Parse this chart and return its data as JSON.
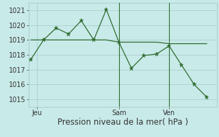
{
  "line1_x": [
    0,
    1,
    2,
    3,
    4,
    5,
    6,
    7,
    8,
    9,
    10,
    11,
    12,
    13,
    14
  ],
  "line1_y": [
    1017.7,
    1019.0,
    1019.8,
    1019.4,
    1020.3,
    1019.0,
    1021.05,
    1018.85,
    1017.1,
    1017.95,
    1018.05,
    1018.6,
    1017.3,
    1016.0,
    1015.15
  ],
  "line2_x": [
    0,
    1,
    2,
    3,
    4,
    5,
    6,
    7,
    8,
    9,
    10,
    11,
    12,
    13,
    14
  ],
  "line2_y": [
    1019.0,
    1019.0,
    1019.0,
    1019.0,
    1019.0,
    1019.0,
    1019.0,
    1018.85,
    1018.85,
    1018.85,
    1018.85,
    1018.75,
    1018.75,
    1018.75,
    1018.75
  ],
  "line_color": "#2d6a2d",
  "bg_color": "#c8eae8",
  "grid_major_color": "#aacfcd",
  "grid_minor_color": "#b8dada",
  "xlabel": "Pression niveau de la mer( hPa )",
  "ylim": [
    1014.5,
    1021.5
  ],
  "yticks": [
    1015,
    1016,
    1017,
    1018,
    1019,
    1020,
    1021
  ],
  "xlim": [
    -0.2,
    14.8
  ],
  "num_x_points": 15,
  "jeu_x": 0.5,
  "sam_x": 7.0,
  "ven_x": 11.0,
  "vline_x": [
    7.0,
    11.0
  ],
  "xtick_positions": [
    0.5,
    7.0,
    11.0
  ],
  "xtick_labels": [
    "Jeu",
    "Sam",
    "Ven"
  ],
  "xlabel_fontsize": 8.5,
  "tick_fontsize": 7.0
}
